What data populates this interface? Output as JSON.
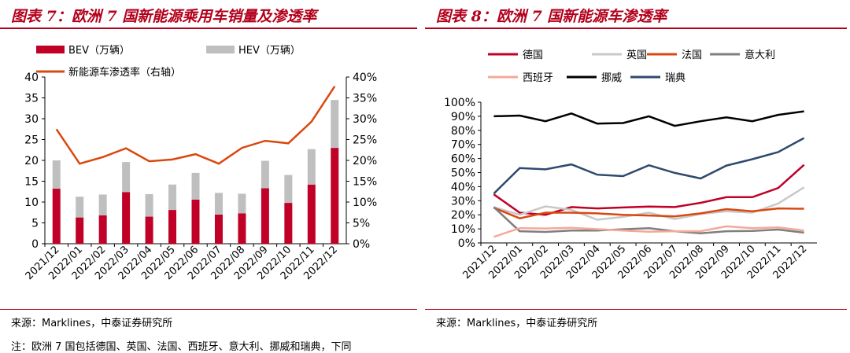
{
  "left": {
    "title": "图表 7：欧洲 7 国新能源乘用车销量及渗透率",
    "source": "来源：Marklines，中泰证券研究所",
    "note": "注：欧洲 7 国包括德国、英国、法国、西班牙、意大利、挪威和瑞典，下同"
  },
  "right": {
    "title": "图表 8：欧洲 7 国新能源车渗透率",
    "source": "来源：Marklines，中泰证券研究所"
  },
  "colors": {
    "accent": "#b3001b",
    "bev": "#c00026",
    "hev": "#bfbfbf",
    "penetration": "#d9480f"
  },
  "chart_data": [
    {
      "type": "bar",
      "title": "欧洲 7 国新能源乘用车销量及渗透率",
      "stacked": true,
      "categories": [
        "2021/12",
        "2022/01",
        "2022/02",
        "2022/03",
        "2022/04",
        "2022/05",
        "2022/06",
        "2022/07",
        "2022/08",
        "2022/09",
        "2022/10",
        "2022/11",
        "2022/12"
      ],
      "series": [
        {
          "name": "BEV（万辆）",
          "color": "#c00026",
          "axis": "left",
          "values": [
            13.2,
            6.3,
            6.8,
            12.4,
            6.5,
            8.1,
            10.6,
            7.0,
            7.3,
            13.3,
            9.8,
            14.2,
            23.0
          ]
        },
        {
          "name": "HEV（万辆）",
          "color": "#bfbfbf",
          "axis": "left",
          "values": [
            6.8,
            5.0,
            5.0,
            7.2,
            5.4,
            6.1,
            6.4,
            5.2,
            4.7,
            6.6,
            6.7,
            8.5,
            11.5
          ]
        },
        {
          "name": "新能源车渗透率（右轴）",
          "color": "#d9480f",
          "axis": "right",
          "kind": "line",
          "values": [
            27.5,
            19.2,
            20.8,
            22.9,
            19.8,
            20.2,
            21.5,
            19.2,
            23.0,
            24.7,
            24.1,
            29.3,
            37.8
          ]
        }
      ],
      "y_left": {
        "min": 0,
        "max": 40,
        "ticks": [
          "0",
          "5",
          "10",
          "15",
          "20",
          "25",
          "30",
          "35",
          "40"
        ]
      },
      "y_right": {
        "min": 0,
        "max": 40,
        "ticks": [
          "0%",
          "5%",
          "10%",
          "15%",
          "20%",
          "25%",
          "30%",
          "35%",
          "40%"
        ]
      }
    },
    {
      "type": "line",
      "title": "欧洲 7 国新能源车渗透率",
      "categories": [
        "2021/12",
        "2022/01",
        "2022/02",
        "2022/03",
        "2022/04",
        "2022/05",
        "2022/06",
        "2022/07",
        "2022/08",
        "2022/09",
        "2022/10",
        "2022/11",
        "2022/12"
      ],
      "series": [
        {
          "name": "德国",
          "color": "#c00026",
          "values": [
            34.5,
            21.5,
            20.0,
            25.5,
            24.5,
            25.2,
            25.8,
            25.5,
            28.5,
            32.5,
            32.5,
            39.0,
            55.5
          ]
        },
        {
          "name": "英国",
          "color": "#c8c8c8",
          "values": [
            25.5,
            20.0,
            26.0,
            23.5,
            16.5,
            18.5,
            21.5,
            17.0,
            20.5,
            22.5,
            21.5,
            28.0,
            39.5
          ]
        },
        {
          "name": "法国",
          "color": "#d9480f",
          "values": [
            25.0,
            17.5,
            21.5,
            21.5,
            21.0,
            20.0,
            19.5,
            18.8,
            21.0,
            24.0,
            22.5,
            24.5,
            24.3
          ]
        },
        {
          "name": "意大利",
          "color": "#7f7f7f",
          "values": [
            25.5,
            8.3,
            7.8,
            8.8,
            8.8,
            9.7,
            10.5,
            8.3,
            6.8,
            8.3,
            8.5,
            9.5,
            7.3
          ]
        },
        {
          "name": "西班牙",
          "color": "#f4a99a",
          "values": [
            4.3,
            10.5,
            10.3,
            10.8,
            9.8,
            8.8,
            8.0,
            8.3,
            8.3,
            11.8,
            10.5,
            11.0,
            8.8
          ]
        },
        {
          "name": "挪威",
          "color": "#000000",
          "values": [
            90.0,
            90.5,
            86.5,
            92.0,
            84.8,
            85.2,
            90.0,
            83.2,
            86.5,
            89.2,
            86.5,
            91.0,
            93.5
          ]
        },
        {
          "name": "瑞典",
          "color": "#2f4a6e",
          "values": [
            35.0,
            53.2,
            52.3,
            55.8,
            48.5,
            47.5,
            55.2,
            49.8,
            45.8,
            55.0,
            59.5,
            64.5,
            74.5
          ]
        }
      ],
      "ylim": [
        0,
        100
      ],
      "y_ticks": [
        "0%",
        "10%",
        "20%",
        "30%",
        "40%",
        "50%",
        "60%",
        "70%",
        "80%",
        "90%",
        "100%"
      ]
    }
  ]
}
